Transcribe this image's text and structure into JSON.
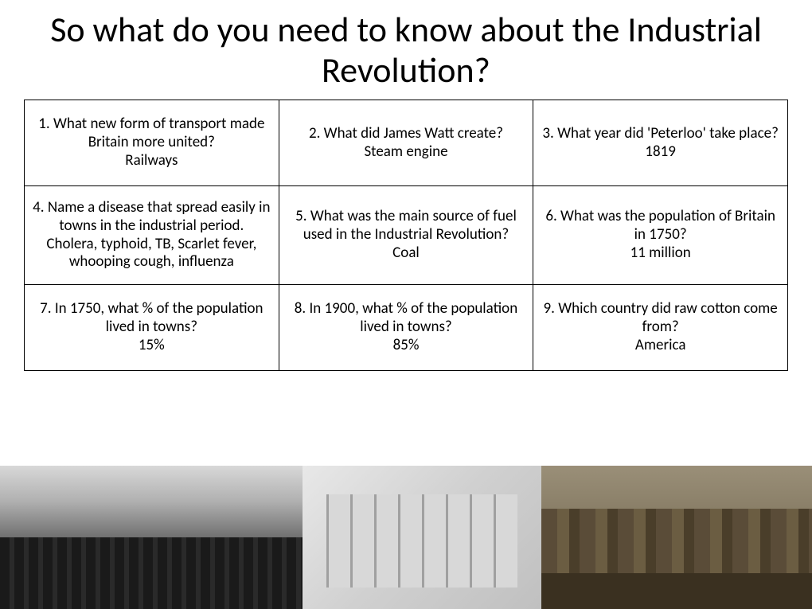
{
  "title": "So what do you need to know about the Industrial Revolution?",
  "table": {
    "columns": 3,
    "rows": 3,
    "border_color": "#000000",
    "cell_fontsize": 19,
    "cells": [
      [
        {
          "question": "1. What new form of transport made Britain more united?",
          "answer": "Railways"
        },
        {
          "question": "2. What did James Watt create?",
          "answer": "Steam engine"
        },
        {
          "question": "3. What year did 'Peterloo' take place?",
          "answer": "1819"
        }
      ],
      [
        {
          "question": "4. Name a disease that spread easily in towns in the industrial period.",
          "answer": "Cholera, typhoid, TB, Scarlet fever, whooping cough, influenza"
        },
        {
          "question": "5. What was the main source of fuel used in the Industrial Revolution?",
          "answer": "Coal"
        },
        {
          "question": "6. What was the population of Britain in 1750?",
          "answer": "11 million"
        }
      ],
      [
        {
          "question": "7. In 1750, what % of the population lived in towns?",
          "answer": "15%"
        },
        {
          "question": "8. In 1900, what % of the population lived in towns?",
          "answer": "85%"
        },
        {
          "question": "9. Which country did raw cotton come from?",
          "answer": "America"
        }
      ]
    ]
  },
  "title_fontsize": 44,
  "background_color": "#ffffff",
  "images": {
    "count": 3,
    "descriptions": [
      "Black and white photograph of industrial factory chimneys with smoke",
      "Black and white engraving of textile mill interior with looms and workers",
      "Sepia painting of industrial waterfront with factory buildings and chimneys"
    ]
  }
}
